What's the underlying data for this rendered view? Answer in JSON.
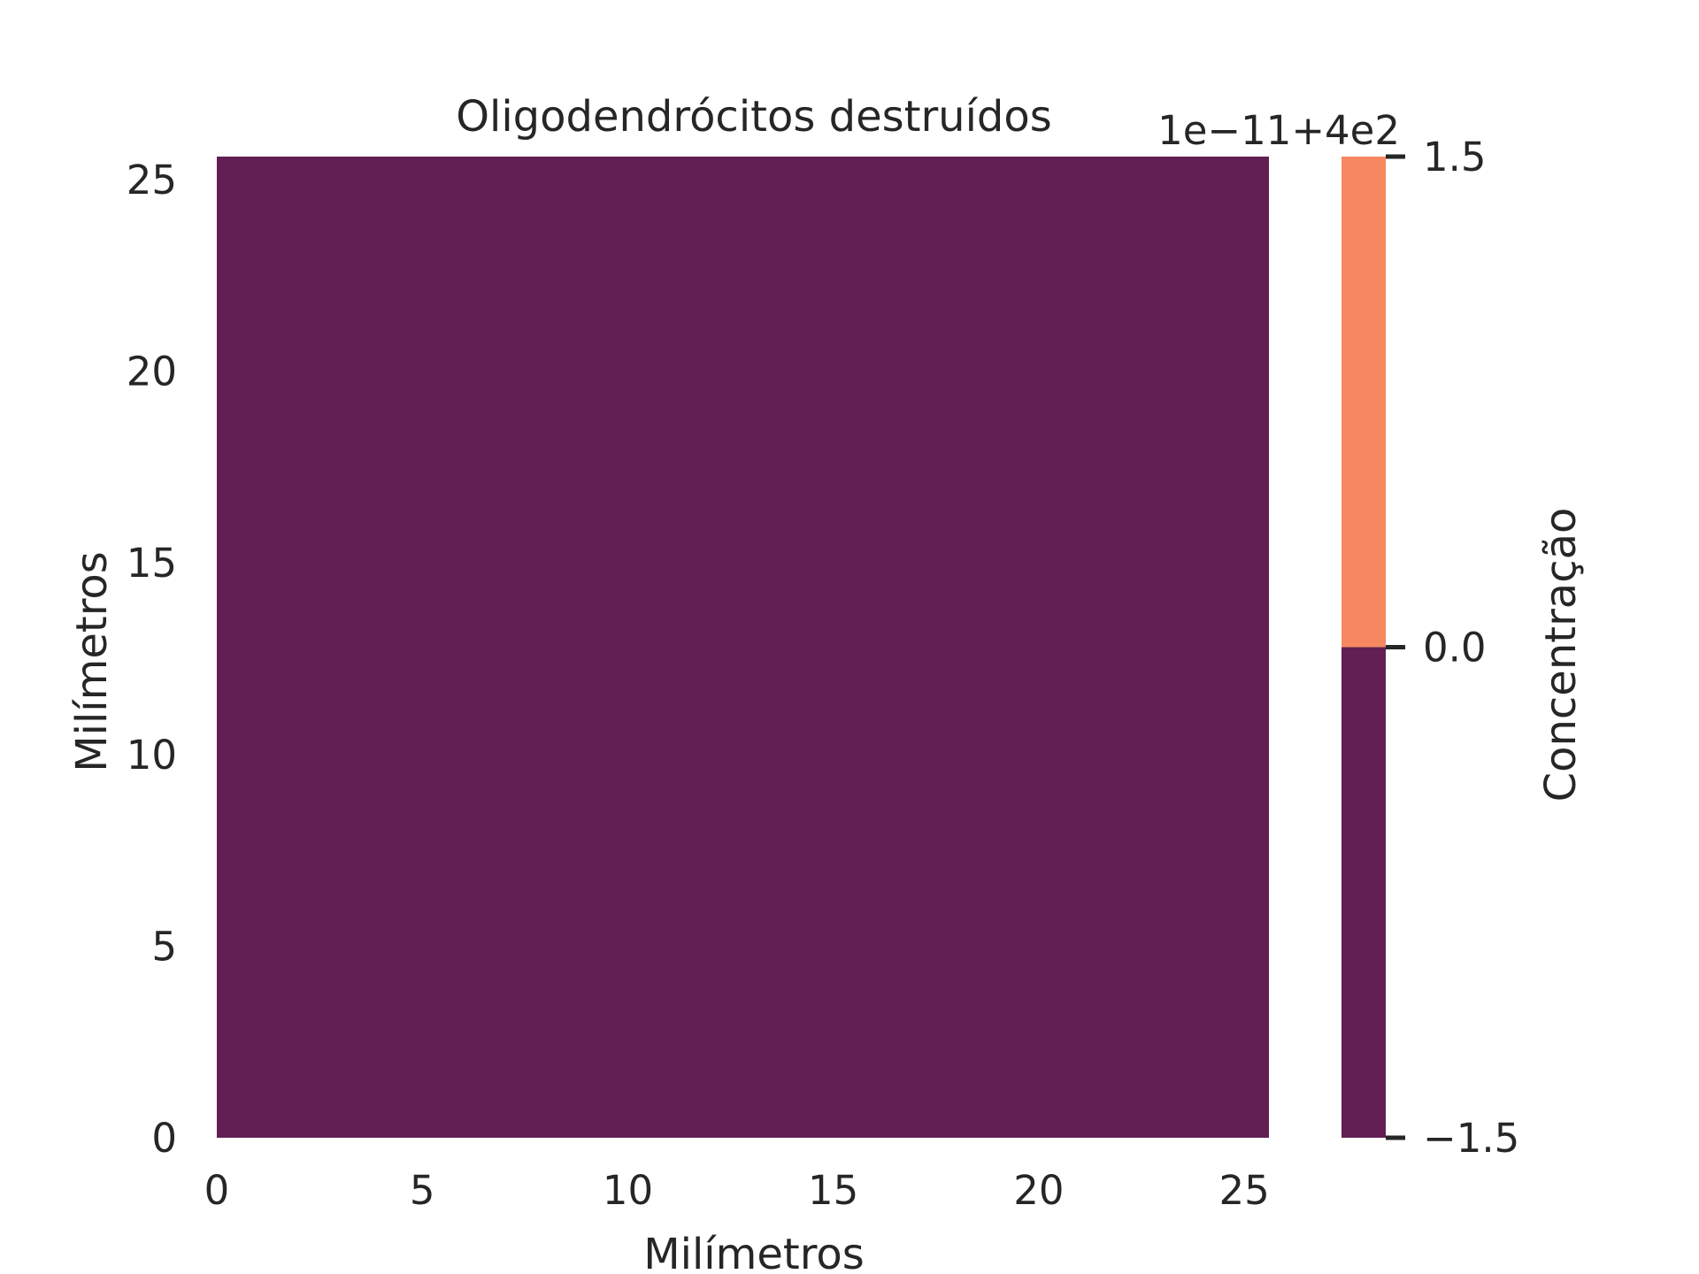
{
  "chart_data": {
    "type": "heatmap",
    "title": "Oligodendrócitos destruídos",
    "xlabel": "Milímetros",
    "ylabel": "Milímetros",
    "xlim": [
      0,
      25.6
    ],
    "ylim": [
      0,
      25.6
    ],
    "xticks": [
      0,
      5,
      10,
      15,
      20,
      25
    ],
    "yticks": [
      0,
      5,
      10,
      15,
      20,
      25
    ],
    "xtick_labels": [
      "0",
      "5",
      "10",
      "15",
      "20",
      "25"
    ],
    "ytick_labels": [
      "0",
      "5",
      "10",
      "15",
      "20",
      "25"
    ],
    "field_value": 0.0,
    "field_color": "#611f53",
    "colorbar": {
      "label": "Concentração",
      "offset_text": "1e−11+4e2",
      "range": [
        -1.5,
        1.5
      ],
      "ticks": [
        -1.5,
        0.0,
        1.5
      ],
      "tick_labels": [
        "−1.5",
        "0.0",
        "1.5"
      ],
      "levels": [
        {
          "from": -1.5,
          "to": 0.0,
          "color": "#611f53"
        },
        {
          "from": 0.0,
          "to": 1.5,
          "color": "#f58860"
        }
      ]
    }
  }
}
